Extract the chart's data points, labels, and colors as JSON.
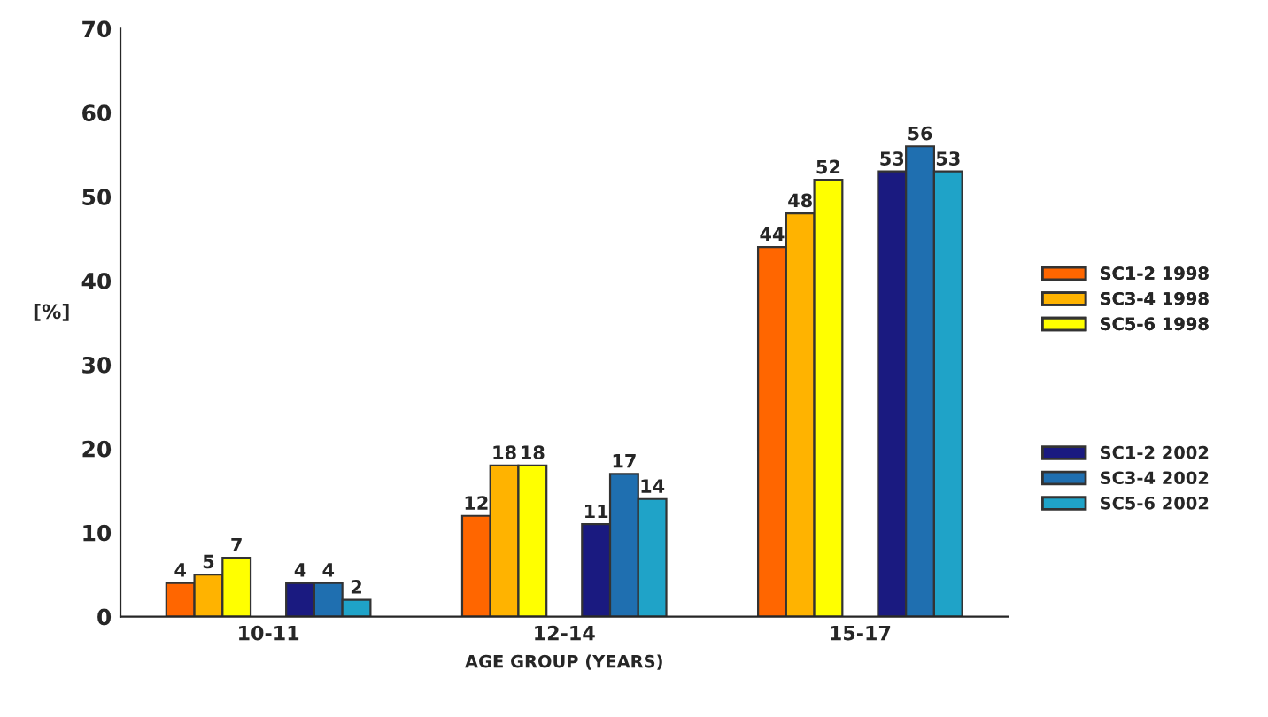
{
  "chart_data": {
    "type": "bar",
    "xlabel": "AGE GROUP (YEARS)",
    "ylabel": "[%]",
    "categories": [
      "10-11",
      "12-14",
      "15-17"
    ],
    "series": [
      {
        "name": "SC1-2 1998",
        "color": "#ff6600",
        "values": [
          4,
          12,
          44
        ]
      },
      {
        "name": "SC3-4 1998",
        "color": "#ffb300",
        "values": [
          5,
          18,
          48
        ]
      },
      {
        "name": "SC5-6 1998",
        "color": "#ffff00",
        "values": [
          7,
          18,
          52
        ]
      },
      {
        "name": "SC1-2 2002",
        "color": "#1a1a80",
        "values": [
          4,
          11,
          53
        ]
      },
      {
        "name": "SC3-4 2002",
        "color": "#1f6fb0",
        "values": [
          4,
          17,
          56
        ]
      },
      {
        "name": "SC5-6 2002",
        "color": "#1fa3c8",
        "values": [
          2,
          14,
          53
        ]
      }
    ],
    "ylim": [
      0,
      70
    ],
    "yticks": [
      0,
      10,
      20,
      30,
      40,
      50,
      60,
      70
    ],
    "data_labels": true,
    "grid": false,
    "legend": "right"
  }
}
